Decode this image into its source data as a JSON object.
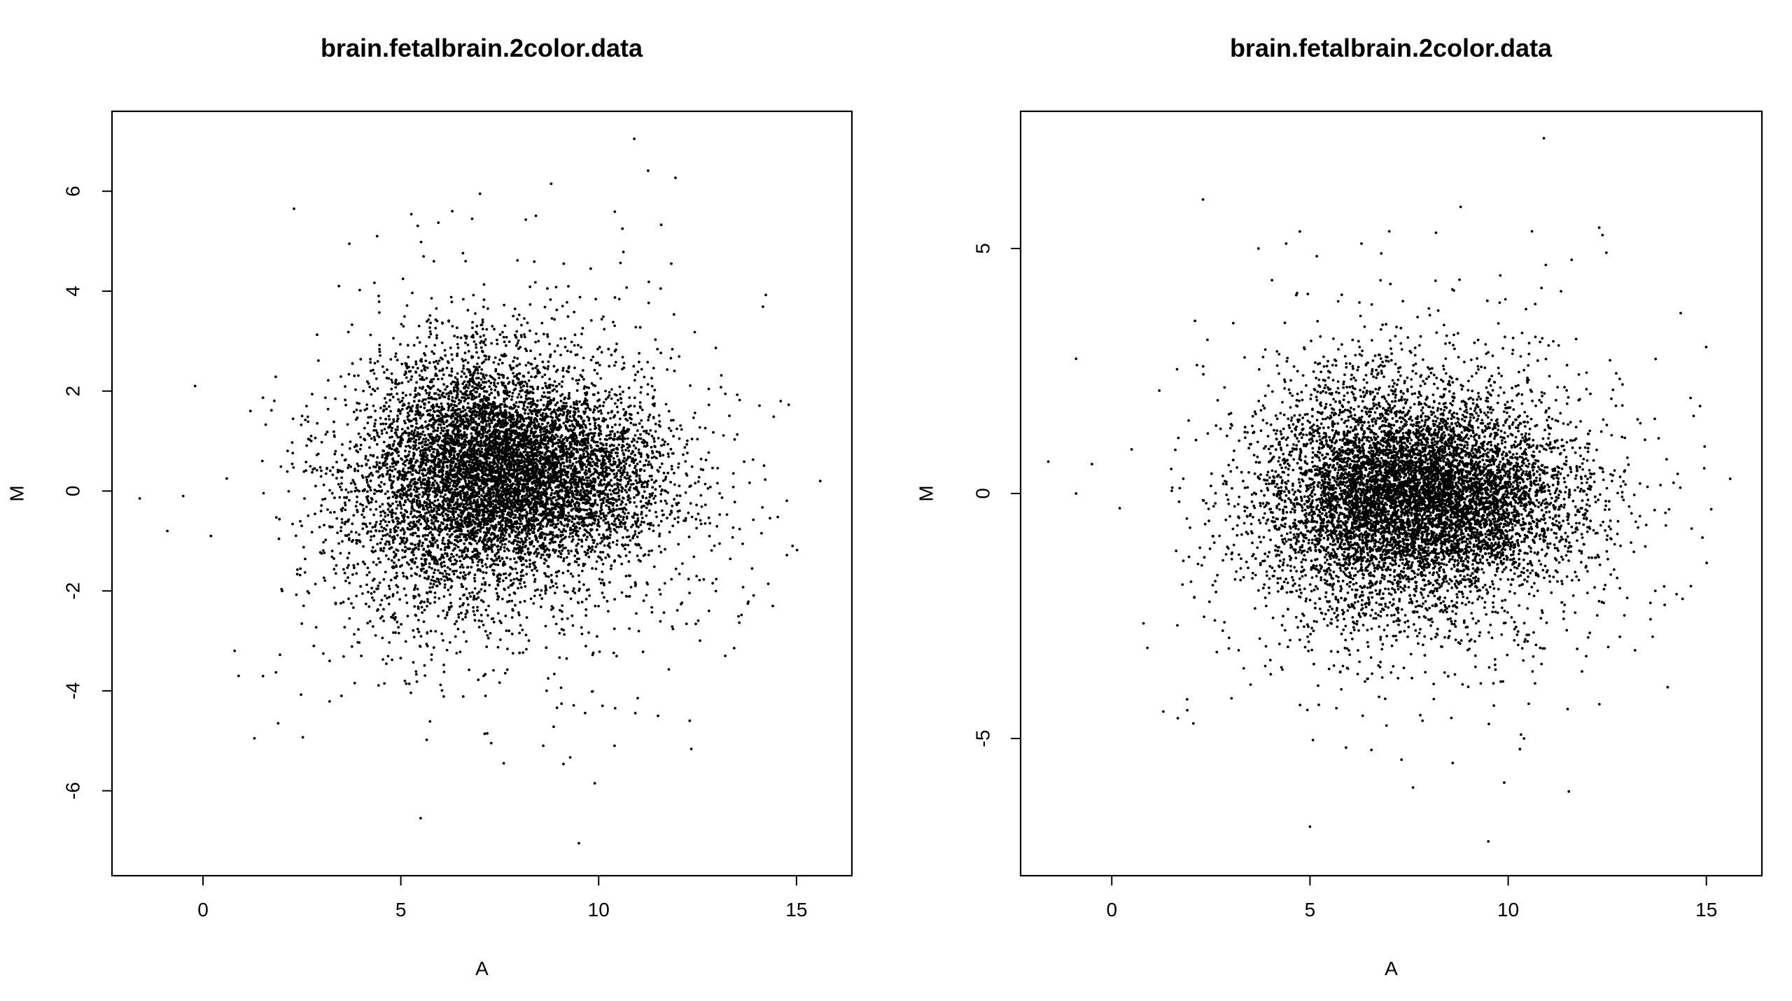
{
  "chart_data": [
    {
      "type": "scatter",
      "title": "brain.fetalbrain.2color.data",
      "xlabel": "A",
      "ylabel": "M",
      "xlim": [
        -2.3,
        16.4
      ],
      "ylim": [
        -7.7,
        7.6
      ],
      "xticks": [
        0,
        5,
        10,
        15
      ],
      "yticks": [
        -6,
        -4,
        -2,
        0,
        2,
        4,
        6
      ],
      "grid": false,
      "legend": "none",
      "point_color": "#000000",
      "n_points": 9000,
      "clusters": [
        {
          "weight": 0.38,
          "center": [
            8.8,
            0.3
          ],
          "sd": [
            1.5,
            0.85
          ]
        },
        {
          "weight": 0.27,
          "center": [
            6.8,
            0.9
          ],
          "sd": [
            1.3,
            1.1
          ]
        },
        {
          "weight": 0.2,
          "center": [
            6.3,
            -0.4
          ],
          "sd": [
            1.7,
            1.2
          ]
        },
        {
          "weight": 0.15,
          "center": [
            8.0,
            0.0
          ],
          "sd": [
            2.8,
            1.9
          ]
        }
      ],
      "outliers": [
        [
          10.9,
          7.05
        ],
        [
          8.8,
          6.15
        ],
        [
          2.3,
          5.65
        ],
        [
          7.0,
          5.95
        ],
        [
          6.3,
          5.6
        ],
        [
          6.8,
          5.45
        ],
        [
          4.4,
          5.1
        ],
        [
          3.7,
          4.95
        ],
        [
          10.6,
          5.25
        ],
        [
          9.8,
          4.45
        ],
        [
          -1.6,
          -0.15
        ],
        [
          -0.5,
          -0.1
        ],
        [
          -0.9,
          -0.8
        ],
        [
          0.2,
          -0.9
        ],
        [
          -0.2,
          2.1
        ],
        [
          0.6,
          0.25
        ],
        [
          1.2,
          1.6
        ],
        [
          0.8,
          -3.2
        ],
        [
          0.9,
          -3.7
        ],
        [
          1.3,
          -4.95
        ],
        [
          1.9,
          -4.65
        ],
        [
          5.5,
          -6.55
        ],
        [
          9.5,
          -7.05
        ],
        [
          9.9,
          -5.85
        ],
        [
          7.6,
          -5.45
        ],
        [
          8.6,
          -5.1
        ],
        [
          15.6,
          0.2
        ],
        [
          14.6,
          1.8
        ],
        [
          14.9,
          -1.1
        ],
        [
          14.4,
          -2.3
        ],
        [
          13.2,
          -3.3
        ],
        [
          12.3,
          -4.6
        ],
        [
          3.5,
          -4.1
        ],
        [
          3.2,
          -3.4
        ],
        [
          4.0,
          -3.3
        ],
        [
          10.4,
          -5.1
        ],
        [
          11.5,
          -4.5
        ],
        [
          2.8,
          -3.1
        ],
        [
          1.5,
          0.6
        ],
        [
          2.0,
          -2.0
        ]
      ]
    },
    {
      "type": "scatter",
      "title": "brain.fetalbrain.2color.data",
      "xlabel": "A",
      "ylabel": "M",
      "xlim": [
        -2.3,
        16.4
      ],
      "ylim": [
        -7.8,
        7.8
      ],
      "xticks": [
        0,
        5,
        10,
        15
      ],
      "yticks": [
        -5,
        0,
        5
      ],
      "grid": false,
      "legend": "none",
      "point_color": "#000000",
      "n_points": 9000,
      "clusters": [
        {
          "weight": 0.38,
          "center": [
            8.8,
            -0.1
          ],
          "sd": [
            1.5,
            0.85
          ]
        },
        {
          "weight": 0.27,
          "center": [
            6.8,
            0.3
          ],
          "sd": [
            1.3,
            1.1
          ]
        },
        {
          "weight": 0.2,
          "center": [
            6.3,
            -0.6
          ],
          "sd": [
            1.7,
            1.2
          ]
        },
        {
          "weight": 0.15,
          "center": [
            8.0,
            -0.1
          ],
          "sd": [
            2.8,
            1.9
          ]
        }
      ],
      "outliers": [
        [
          10.9,
          7.25
        ],
        [
          8.8,
          5.85
        ],
        [
          2.3,
          6.0
        ],
        [
          7.0,
          5.35
        ],
        [
          6.3,
          5.1
        ],
        [
          6.8,
          4.9
        ],
        [
          4.4,
          5.1
        ],
        [
          3.7,
          5.0
        ],
        [
          10.6,
          5.35
        ],
        [
          9.8,
          4.45
        ],
        [
          -1.6,
          0.65
        ],
        [
          -0.9,
          2.75
        ],
        [
          -0.5,
          0.6
        ],
        [
          -0.9,
          0.0
        ],
        [
          0.2,
          -0.3
        ],
        [
          1.2,
          2.1
        ],
        [
          0.8,
          -2.65
        ],
        [
          0.9,
          -3.15
        ],
        [
          1.3,
          -4.45
        ],
        [
          1.9,
          -4.2
        ],
        [
          5.0,
          -6.8
        ],
        [
          9.5,
          -7.1
        ],
        [
          9.9,
          -5.9
        ],
        [
          7.6,
          -6.0
        ],
        [
          8.6,
          -5.5
        ],
        [
          15.6,
          0.3
        ],
        [
          14.6,
          1.95
        ],
        [
          14.9,
          -0.9
        ],
        [
          14.4,
          -2.15
        ],
        [
          13.2,
          -3.2
        ],
        [
          12.3,
          -4.3
        ],
        [
          3.5,
          -3.9
        ],
        [
          3.2,
          -3.2
        ],
        [
          4.0,
          -3.4
        ],
        [
          10.4,
          -5.0
        ],
        [
          11.5,
          -4.4
        ],
        [
          2.8,
          -2.8
        ],
        [
          1.5,
          0.5
        ],
        [
          2.0,
          -1.8
        ],
        [
          0.5,
          0.9
        ]
      ]
    }
  ]
}
